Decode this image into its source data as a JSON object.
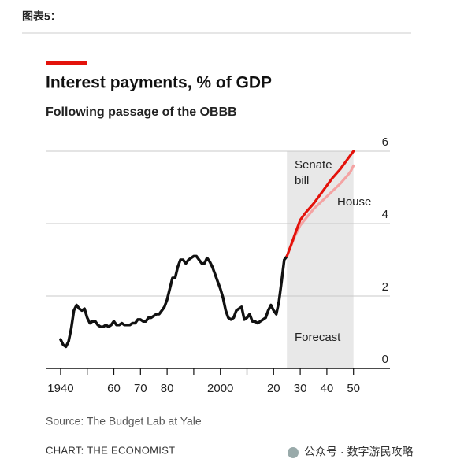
{
  "header": {
    "title": "图表5："
  },
  "chart_data": {
    "type": "line",
    "title": "Interest payments, % of GDP",
    "subtitle": "Following passage of the OBBB",
    "source": "Source: The Budget Lab at Yale",
    "credit": "CHART: THE ECONOMIST",
    "xlim": [
      1934.4,
      2063.7
    ],
    "ylim": [
      0,
      6
    ],
    "yticks": [
      0,
      2,
      4,
      6
    ],
    "xticks": [
      {
        "value": 1940,
        "label": "1940"
      },
      {
        "value": 1950,
        "label": null
      },
      {
        "value": 1960,
        "label": "60"
      },
      {
        "value": 1970,
        "label": "70"
      },
      {
        "value": 1980,
        "label": "80"
      },
      {
        "value": 1990,
        "label": null
      },
      {
        "value": 2000,
        "label": "2000"
      },
      {
        "value": 2010,
        "label": null
      },
      {
        "value": 2020,
        "label": "20"
      },
      {
        "value": 2030,
        "label": "30"
      },
      {
        "value": 2040,
        "label": "40"
      },
      {
        "value": 2050,
        "label": "50"
      }
    ],
    "grid": true,
    "forecast": {
      "label": "Forecast",
      "start": 2025,
      "end": 2050,
      "color": "#e8e8e8"
    },
    "series": [
      {
        "color": "#111111",
        "x": [
          1940,
          1941,
          1942,
          1943,
          1944,
          1945,
          1946,
          1947,
          1948,
          1949,
          1950,
          1951,
          1952,
          1953,
          1954,
          1955,
          1956,
          1957,
          1958,
          1959,
          1960,
          1961,
          1962,
          1963,
          1964,
          1965,
          1966,
          1967,
          1968,
          1969,
          1970,
          1971,
          1972,
          1973,
          1974,
          1975,
          1976,
          1977,
          1978,
          1979,
          1980,
          1981,
          1982,
          1983,
          1984,
          1985,
          1986,
          1987,
          1988,
          1989,
          1990,
          1991,
          1992,
          1993,
          1994,
          1995,
          1996,
          1997,
          1998,
          1999,
          2000,
          2001,
          2002,
          2003,
          2004,
          2005,
          2006,
          2007,
          2008,
          2009,
          2010,
          2011,
          2012,
          2013,
          2014,
          2015,
          2016,
          2017,
          2018,
          2019,
          2020,
          2021,
          2022,
          2023,
          2024,
          2025
        ],
        "values": [
          0.8,
          0.65,
          0.6,
          0.75,
          1.1,
          1.6,
          1.75,
          1.65,
          1.6,
          1.65,
          1.4,
          1.25,
          1.3,
          1.3,
          1.2,
          1.15,
          1.15,
          1.2,
          1.15,
          1.2,
          1.3,
          1.2,
          1.2,
          1.25,
          1.2,
          1.2,
          1.2,
          1.25,
          1.25,
          1.35,
          1.35,
          1.3,
          1.3,
          1.4,
          1.4,
          1.45,
          1.5,
          1.5,
          1.6,
          1.7,
          1.9,
          2.2,
          2.5,
          2.5,
          2.8,
          3.0,
          3.0,
          2.9,
          3.0,
          3.05,
          3.1,
          3.1,
          3.0,
          2.9,
          2.9,
          3.05,
          2.95,
          2.8,
          2.6,
          2.4,
          2.2,
          1.95,
          1.6,
          1.4,
          1.35,
          1.4,
          1.6,
          1.65,
          1.7,
          1.35,
          1.4,
          1.5,
          1.3,
          1.3,
          1.25,
          1.3,
          1.35,
          1.4,
          1.6,
          1.75,
          1.6,
          1.5,
          1.85,
          2.4,
          3.0,
          3.1
        ]
      },
      {
        "label": "House",
        "color": "#f4a3a3",
        "x": [
          2025,
          2028,
          2030,
          2035,
          2040,
          2045,
          2048,
          2049,
          2050
        ],
        "values": [
          3.1,
          3.65,
          3.95,
          4.4,
          4.75,
          5.1,
          5.35,
          5.45,
          5.6
        ]
      },
      {
        "label": [
          "Senate",
          "bill"
        ],
        "color": "#e3120b",
        "x": [
          2025,
          2026,
          2027,
          2028,
          2029,
          2030,
          2032,
          2035,
          2038,
          2040,
          2042,
          2045,
          2048,
          2050
        ],
        "values": [
          3.1,
          3.3,
          3.5,
          3.7,
          3.9,
          4.1,
          4.3,
          4.55,
          4.85,
          5.05,
          5.25,
          5.5,
          5.8,
          6.0
        ]
      }
    ]
  },
  "watermark": "公众号 · 数字游民攻略"
}
